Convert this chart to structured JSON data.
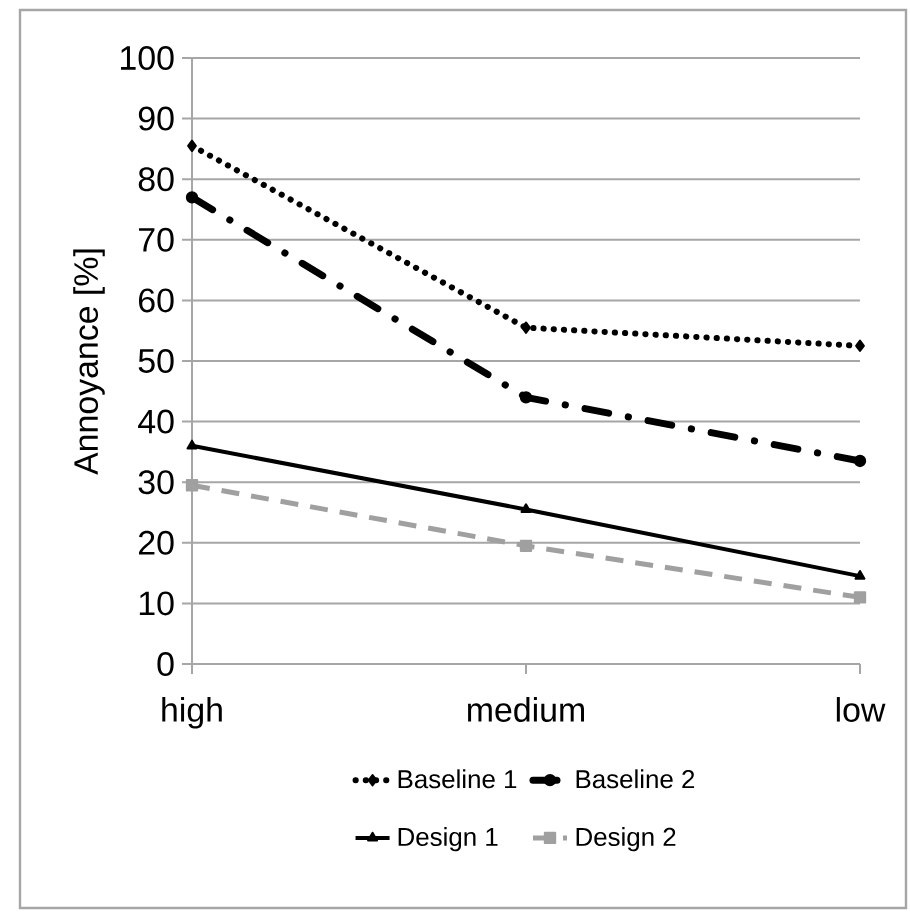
{
  "chart_data": {
    "type": "line",
    "ylabel": "Annoyance [%]",
    "categories": [
      "high",
      "medium",
      "low"
    ],
    "series": [
      {
        "name": "Baseline 1",
        "color": "#000000",
        "values": [
          85.5,
          55.5,
          52.5
        ],
        "marker": "diamond",
        "line_style": "dotted"
      },
      {
        "name": "Baseline 2",
        "color": "#000000",
        "values": [
          77,
          44,
          33.5
        ],
        "marker": "circle",
        "line_style": "dashdot"
      },
      {
        "name": "Design 1",
        "color": "#000000",
        "values": [
          36,
          25.5,
          14.5
        ],
        "marker": "triangle",
        "line_style": "solid"
      },
      {
        "name": "Design 2",
        "color": "#a0a0a0",
        "values": [
          29.5,
          19.5,
          11
        ],
        "marker": "square",
        "line_style": "dashed"
      }
    ],
    "ylim": [
      0,
      100
    ],
    "yticks": [
      0,
      10,
      20,
      30,
      40,
      50,
      60,
      70,
      80,
      90,
      100
    ],
    "grid": "y",
    "legend": "bottom"
  }
}
